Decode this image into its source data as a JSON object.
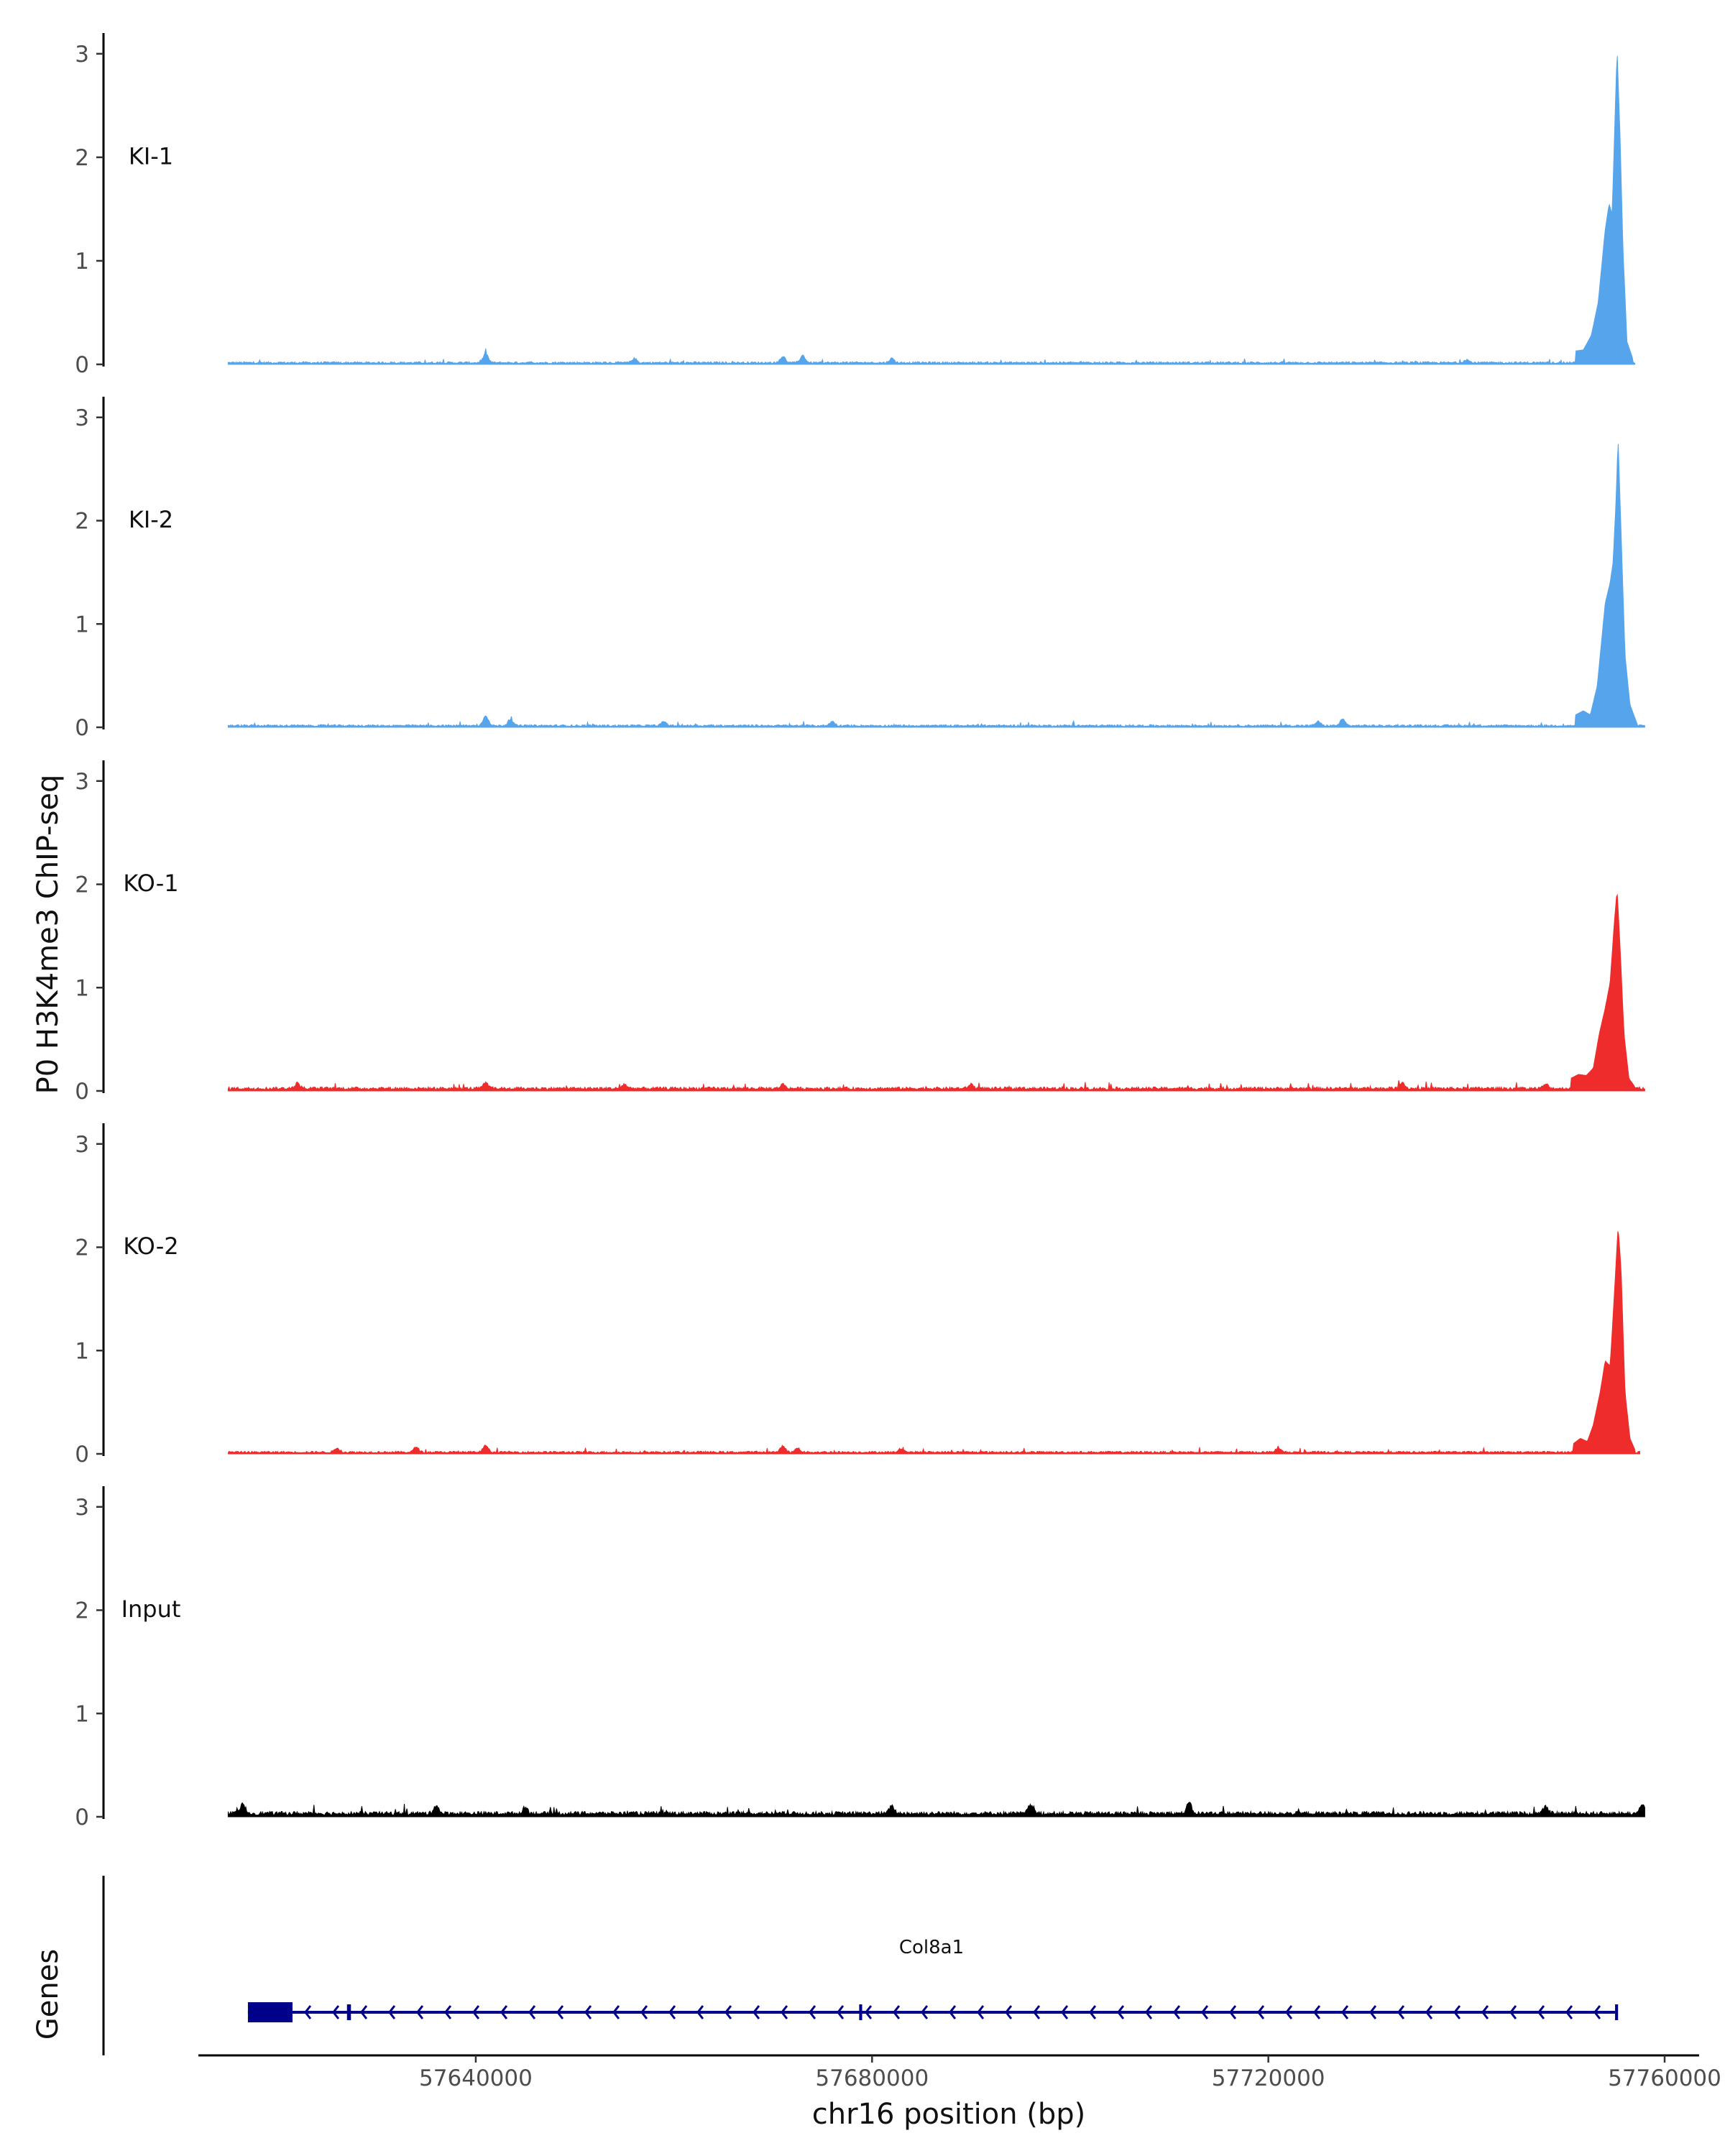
{
  "chart_data": {
    "type": "area",
    "ylabel": "P0 H3K4me3 ChIP-seq",
    "xlabel": "chr16 position (bp)",
    "xlim": [
      57612000,
      57760000
    ],
    "x_ticks": [
      57640000,
      57680000,
      57720000,
      57760000
    ],
    "x_tick_labels": [
      "57640000",
      "57680000",
      "57720000",
      "57760000"
    ],
    "ylim": [
      0,
      3.2
    ],
    "y_ticks": [
      0,
      1,
      2,
      3
    ],
    "y_tick_labels": [
      "0",
      "1",
      "2",
      "3"
    ],
    "data_range": [
      57615000,
      57758000
    ],
    "colors": {
      "ki": "#56A5EC",
      "ko": "#EE2C2C",
      "input": "#000000",
      "gene": "#00008B"
    },
    "series": [
      {
        "name": "KI-1",
        "color": "#56A5EC",
        "baseline": 0.02,
        "end": 57757000,
        "bumps": [
          [
            57641000,
            0.09
          ],
          [
            57656000,
            0.04
          ],
          [
            57671000,
            0.06
          ],
          [
            57673000,
            0.07
          ],
          [
            57682000,
            0.04
          ],
          [
            57740000,
            0.03
          ]
        ],
        "peaks": [
          [
            57751000,
            0.13
          ],
          [
            57751800,
            0.14
          ],
          [
            57752600,
            0.28
          ],
          [
            57753300,
            0.6
          ],
          [
            57754000,
            1.3
          ],
          [
            57754400,
            1.55
          ],
          [
            57754700,
            1.45
          ],
          [
            57755000,
            2.4
          ],
          [
            57755200,
            3.05
          ],
          [
            57755500,
            2.2
          ],
          [
            57755800,
            1.1
          ],
          [
            57756200,
            0.22
          ],
          [
            57756800,
            0.05
          ]
        ]
      },
      {
        "name": "KI-2",
        "color": "#56A5EC",
        "baseline": 0.02,
        "end": 57758000,
        "bumps": [
          [
            57641000,
            0.1
          ],
          [
            57643500,
            0.06
          ],
          [
            57659000,
            0.04
          ],
          [
            57676000,
            0.04
          ],
          [
            57725000,
            0.04
          ],
          [
            57727500,
            0.06
          ]
        ],
        "peaks": [
          [
            57751000,
            0.12
          ],
          [
            57751800,
            0.16
          ],
          [
            57752500,
            0.12
          ],
          [
            57753200,
            0.4
          ],
          [
            57754000,
            1.2
          ],
          [
            57754500,
            1.4
          ],
          [
            57754800,
            1.6
          ],
          [
            57755100,
            2.2
          ],
          [
            57755300,
            2.8
          ],
          [
            57755600,
            1.9
          ],
          [
            57756000,
            0.7
          ],
          [
            57756500,
            0.22
          ],
          [
            57757200,
            0.04
          ]
        ]
      },
      {
        "name": "KO-1",
        "color": "#EE2C2C",
        "baseline": 0.03,
        "end": 57758000,
        "bumps": [
          [
            57622000,
            0.05
          ],
          [
            57641000,
            0.05
          ],
          [
            57655000,
            0.04
          ],
          [
            57671000,
            0.04
          ],
          [
            57690000,
            0.04
          ],
          [
            57733500,
            0.06
          ],
          [
            57748000,
            0.04
          ]
        ],
        "peaks": [
          [
            57750500,
            0.12
          ],
          [
            57751300,
            0.16
          ],
          [
            57752100,
            0.15
          ],
          [
            57752800,
            0.22
          ],
          [
            57753400,
            0.55
          ],
          [
            57754000,
            0.8
          ],
          [
            57754500,
            1.05
          ],
          [
            57754900,
            1.6
          ],
          [
            57755200,
            1.95
          ],
          [
            57755500,
            1.4
          ],
          [
            57755900,
            0.55
          ],
          [
            57756400,
            0.12
          ],
          [
            57757000,
            0.04
          ]
        ]
      },
      {
        "name": "KO-2",
        "color": "#EE2C2C",
        "baseline": 0.02,
        "end": 57757500,
        "bumps": [
          [
            57626000,
            0.04
          ],
          [
            57634000,
            0.05
          ],
          [
            57641000,
            0.07
          ],
          [
            57671000,
            0.06
          ],
          [
            57672500,
            0.04
          ],
          [
            57683000,
            0.03
          ],
          [
            57721000,
            0.04
          ]
        ],
        "peaks": [
          [
            57750800,
            0.1
          ],
          [
            57751500,
            0.15
          ],
          [
            57752200,
            0.12
          ],
          [
            57752800,
            0.28
          ],
          [
            57753500,
            0.6
          ],
          [
            57754000,
            0.9
          ],
          [
            57754500,
            0.85
          ],
          [
            57754900,
            1.5
          ],
          [
            57755300,
            2.2
          ],
          [
            57755600,
            1.8
          ],
          [
            57756000,
            0.6
          ],
          [
            57756500,
            0.15
          ],
          [
            57757000,
            0.04
          ]
        ]
      },
      {
        "name": "Input",
        "color": "#000000",
        "baseline": 0.04,
        "end": 57758000,
        "bumps": [
          [
            57616500,
            0.09
          ],
          [
            57636000,
            0.08
          ],
          [
            57645000,
            0.06
          ],
          [
            57682000,
            0.07
          ],
          [
            57696000,
            0.08
          ],
          [
            57712000,
            0.1
          ],
          [
            57748000,
            0.06
          ],
          [
            57757800,
            0.08
          ]
        ],
        "peaks": []
      }
    ],
    "genes_panel": {
      "title": "Genes",
      "gene": "Col8a1",
      "strand": "-",
      "start": 57617000,
      "end": 57755000,
      "exons": [
        [
          57617000,
          57621500
        ],
        [
          57627000,
          57627400
        ],
        [
          57678700,
          57679000
        ],
        [
          57755000,
          57755300
        ]
      ]
    }
  }
}
